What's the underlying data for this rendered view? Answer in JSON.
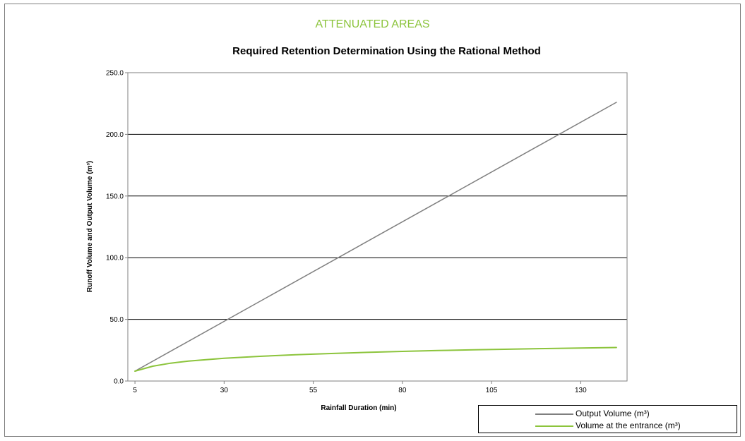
{
  "chart_data": {
    "type": "line",
    "supertitle": "ATTENUATED AREAS",
    "supertitle_color": "#8cc43c",
    "title": "Required Retention Determination Using the Rational Method",
    "xlabel": "Rainfall Duration (min)",
    "ylabel": "Runoff Volume and Output Volume (m³)",
    "xlim": [
      3,
      143
    ],
    "ylim": [
      0,
      250
    ],
    "xticks": [
      5,
      30,
      55,
      80,
      105,
      130
    ],
    "xtick_labels": [
      "5",
      "30",
      "55",
      "80",
      "105",
      "130"
    ],
    "yticks": [
      0,
      50,
      100,
      150,
      200,
      250
    ],
    "ytick_labels": [
      "0.0",
      "50.0",
      "100.0",
      "150.0",
      "200.0",
      "250.0"
    ],
    "grid": "horizontal",
    "legend_position": "bottom-right",
    "series": [
      {
        "name": "Output Volume (m³)",
        "color": "#7f7f7f",
        "x": [
          5,
          140
        ],
        "y": [
          8.0,
          226.0
        ]
      },
      {
        "name": "Volume at the entrance  (m³)",
        "color": "#8cc43c",
        "x": [
          5,
          10,
          15,
          20,
          30,
          40,
          50,
          60,
          70,
          80,
          90,
          100,
          110,
          120,
          130,
          140
        ],
        "y": [
          8.0,
          12.0,
          14.5,
          16.2,
          18.5,
          20.0,
          21.3,
          22.3,
          23.2,
          24.0,
          24.7,
          25.3,
          25.8,
          26.3,
          26.7,
          27.2
        ]
      }
    ]
  }
}
